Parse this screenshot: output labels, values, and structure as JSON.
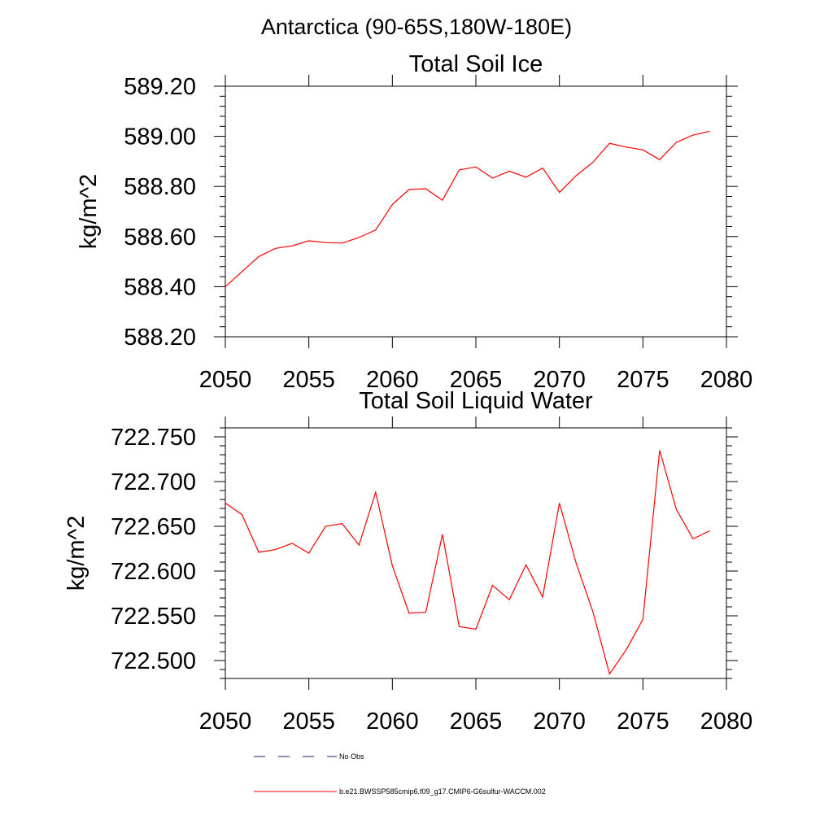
{
  "figure": {
    "title": "Antarctica (90-65S,180W-180E)"
  },
  "chart_data": [
    {
      "type": "line",
      "title": "Total Soil Ice",
      "xlabel": "",
      "ylabel": "kg/m^2",
      "xlim": [
        2050,
        2080
      ],
      "ylim": [
        588.2,
        589.2
      ],
      "x_ticks": [
        "2050",
        "2055",
        "2060",
        "2065",
        "2070",
        "2075",
        "2080"
      ],
      "y_ticks": [
        "588.20",
        "588.40",
        "588.60",
        "588.80",
        "589.00",
        "589.20"
      ],
      "grid": false,
      "series": [
        {
          "name": "b.e21.BWSSP585cmip6.f09_g17.CMIP6-G6sulfur-WACCM.002",
          "color": "#ff0000",
          "x": [
            2050,
            2051,
            2052,
            2053,
            2054,
            2055,
            2056,
            2057,
            2058,
            2059,
            2060,
            2061,
            2062,
            2063,
            2064,
            2065,
            2066,
            2067,
            2068,
            2069,
            2070,
            2071,
            2072,
            2073,
            2074,
            2075,
            2076,
            2077,
            2078,
            2079
          ],
          "values": [
            588.4,
            588.46,
            588.52,
            588.553,
            588.563,
            588.583,
            588.576,
            588.574,
            588.596,
            588.626,
            588.728,
            588.788,
            588.791,
            588.745,
            588.866,
            588.878,
            588.833,
            588.861,
            588.837,
            588.873,
            588.776,
            588.843,
            588.896,
            588.972,
            588.957,
            588.946,
            588.907,
            588.976,
            589.005,
            589.02
          ]
        }
      ]
    },
    {
      "type": "line",
      "title": "Total Soil Liquid Water",
      "xlabel": "",
      "ylabel": "kg/m^2",
      "xlim": [
        2050,
        2080
      ],
      "ylim": [
        722.48,
        722.76
      ],
      "x_ticks": [
        "2050",
        "2055",
        "2060",
        "2065",
        "2070",
        "2075",
        "2080"
      ],
      "y_ticks": [
        "722.500",
        "722.550",
        "722.600",
        "722.650",
        "722.700",
        "722.750"
      ],
      "grid": false,
      "series": [
        {
          "name": "b.e21.BWSSP585cmip6.f09_g17.CMIP6-G6sulfur-WACCM.002",
          "color": "#ff0000",
          "x": [
            2050,
            2051,
            2052,
            2053,
            2054,
            2055,
            2056,
            2057,
            2058,
            2059,
            2060,
            2061,
            2062,
            2063,
            2064,
            2065,
            2066,
            2067,
            2068,
            2069,
            2070,
            2071,
            2072,
            2073,
            2074,
            2075,
            2076,
            2077,
            2078,
            2079
          ],
          "values": [
            722.676,
            722.663,
            722.621,
            722.624,
            722.631,
            722.62,
            722.65,
            722.653,
            722.629,
            722.688,
            722.606,
            722.553,
            722.554,
            722.641,
            722.538,
            722.535,
            722.584,
            722.568,
            722.607,
            722.571,
            722.676,
            722.609,
            722.555,
            722.485,
            722.512,
            722.546,
            722.735,
            722.669,
            722.636,
            722.645
          ]
        }
      ]
    }
  ],
  "legend": {
    "position": "bottom-center",
    "items": [
      {
        "label": "No Obs",
        "style": "dashed",
        "color": "#1e1e6e"
      },
      {
        "label": "b.e21.BWSSP585cmip6.f09_g17.CMIP6-G6sulfur-WACCM.002",
        "style": "solid",
        "color": "#ff0000"
      }
    ]
  }
}
